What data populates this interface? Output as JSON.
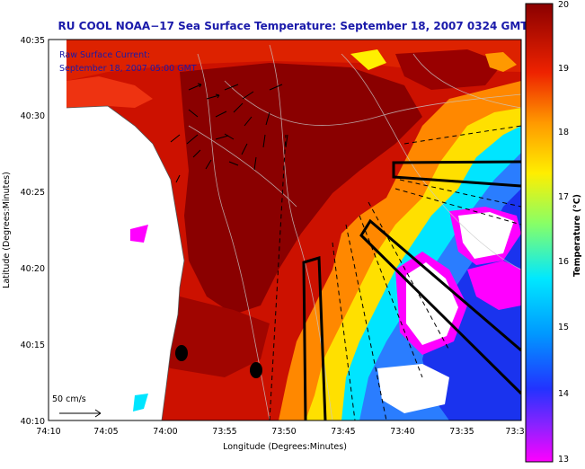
{
  "title": "RU COOL  NOAA−17  Sea Surface Temperature:  September 18, 2007 0324 GMT",
  "overlay": {
    "line1": "Raw Surface Current:",
    "line2": "September 18, 2007 05:00 GMT",
    "scale_label": "50 cm/s"
  },
  "axes": {
    "xlabel": "Longitude (Degrees:Minutes)",
    "ylabel": "Latitude (Degrees:Minutes)",
    "xticks": [
      "74:10",
      "74:05",
      "74:00",
      "73:55",
      "73:50",
      "73:45",
      "73:40",
      "73:35",
      "73:3"
    ],
    "yticks": [
      "40:35",
      "40:30",
      "40:25",
      "40:20",
      "40:15",
      "40:10"
    ]
  },
  "colorbar": {
    "label": "Temperature (°C)",
    "ticks": [
      "20",
      "19",
      "18",
      "17",
      "16",
      "15",
      "14",
      "13"
    ],
    "min": 13,
    "max": 20,
    "colors": [
      "#ff00ff",
      "#3355ff",
      "#00e5ff",
      "#aaff55",
      "#ffee00",
      "#ff8800",
      "#ee1100",
      "#990000"
    ]
  },
  "colors": {
    "title": "#1a1aaa",
    "overlay_text": "#1a1aaa",
    "land": "#ffffff",
    "warm": "#cc1100",
    "hot": "#8a0000"
  }
}
